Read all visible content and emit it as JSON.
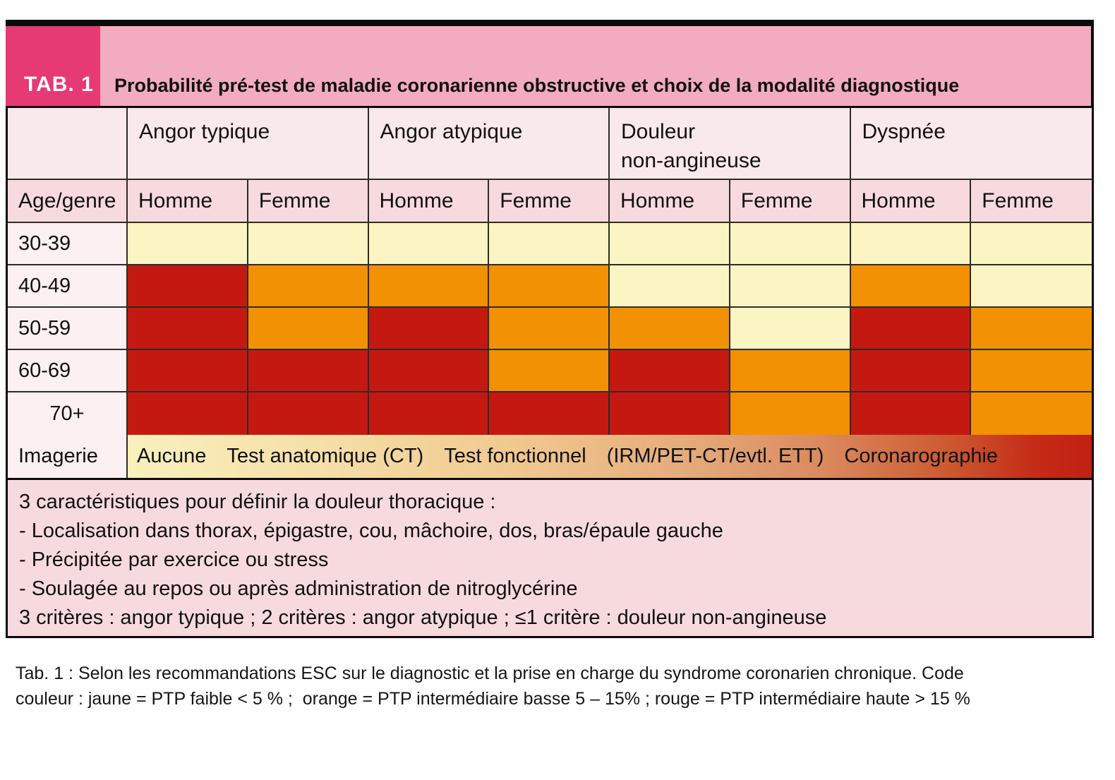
{
  "header": {
    "badge": "TAB. 1",
    "title": "Probabilité pré-test de maladie coronarienne obstructive et choix de la modalité diagnostique"
  },
  "table": {
    "corner_label": "",
    "age_gender_label": "Age/genre",
    "groups": [
      {
        "label": "Angor typique",
        "columns": [
          "Homme",
          "Femme"
        ]
      },
      {
        "label": "Angor atypique",
        "columns": [
          "Homme",
          "Femme"
        ]
      },
      {
        "label": "Douleur\nnon-angineuse",
        "columns": [
          "Homme",
          "Femme"
        ]
      },
      {
        "label": "Dyspnée",
        "columns": [
          "Homme",
          "Femme"
        ]
      }
    ],
    "rows": [
      {
        "label": "30-39",
        "align": "left",
        "levels": [
          "yellow",
          "yellow",
          "yellow",
          "yellow",
          "yellow",
          "yellow",
          "yellow",
          "yellow"
        ]
      },
      {
        "label": "40-49",
        "align": "left",
        "levels": [
          "red",
          "orange",
          "orange",
          "orange",
          "yellow",
          "yellow",
          "orange",
          "yellow"
        ]
      },
      {
        "label": "50-59",
        "align": "left",
        "levels": [
          "red",
          "orange",
          "red",
          "orange",
          "orange",
          "yellow",
          "red",
          "orange"
        ]
      },
      {
        "label": "60-69",
        "align": "left",
        "levels": [
          "red",
          "red",
          "red",
          "orange",
          "red",
          "orange",
          "red",
          "orange"
        ]
      },
      {
        "label": "70+",
        "align": "center",
        "levels": [
          "red",
          "red",
          "red",
          "red",
          "red",
          "orange",
          "red",
          "orange"
        ]
      }
    ],
    "imaging": {
      "label": "Imagerie",
      "options": [
        "Aucune",
        "Test anatomique (CT)",
        "Test fonctionnel",
        "(IRM/PET-CT/evtl. ETT)",
        "Coronarographie"
      ]
    }
  },
  "notes": {
    "lines": [
      "3 caractéristiques pour définir la douleur thoracique :",
      "- Localisation dans thorax, épigastre, cou, mâchoire, dos, bras/épaule gauche",
      "- Précipitée par exercice ou stress",
      "- Soulagée au repos ou après administration de nitroglycérine",
      "3 critères : angor typique ; 2 critères : angor atypique ; ≤1 critère : douleur non-angineuse"
    ]
  },
  "caption": {
    "lines": [
      "Tab. 1 : Selon les recommandations ESC sur le diagnostic et la prise en charge du syndrome coronarien chronique. Code",
      "couleur : jaune = PTP faible < 5 % ;  orange = PTP intermédiaire basse 5 – 15% ; rouge = PTP intermédiaire haute > 15 %"
    ]
  },
  "colors": {
    "yellow": "#FBF5C4",
    "orange": "#F29104",
    "red": "#C41911",
    "badge": "#E53A73",
    "titlebar": "#F3ACBF",
    "gheader": "#FAE9EC",
    "subheader": "#F7DADE",
    "labelbg": "#FDF0F2",
    "notesbg": "#F7DADE",
    "line": "#2E2B26"
  },
  "imaging_gradient_stops": [
    "#F9F0BD 0%",
    "#F6E1AA 18%",
    "#F0C98F 40%",
    "#E5AB7B 58%",
    "#DA8A5E 72%",
    "#CD5A31 85%",
    "#C52C16 94%",
    "#C22013 100%"
  ]
}
